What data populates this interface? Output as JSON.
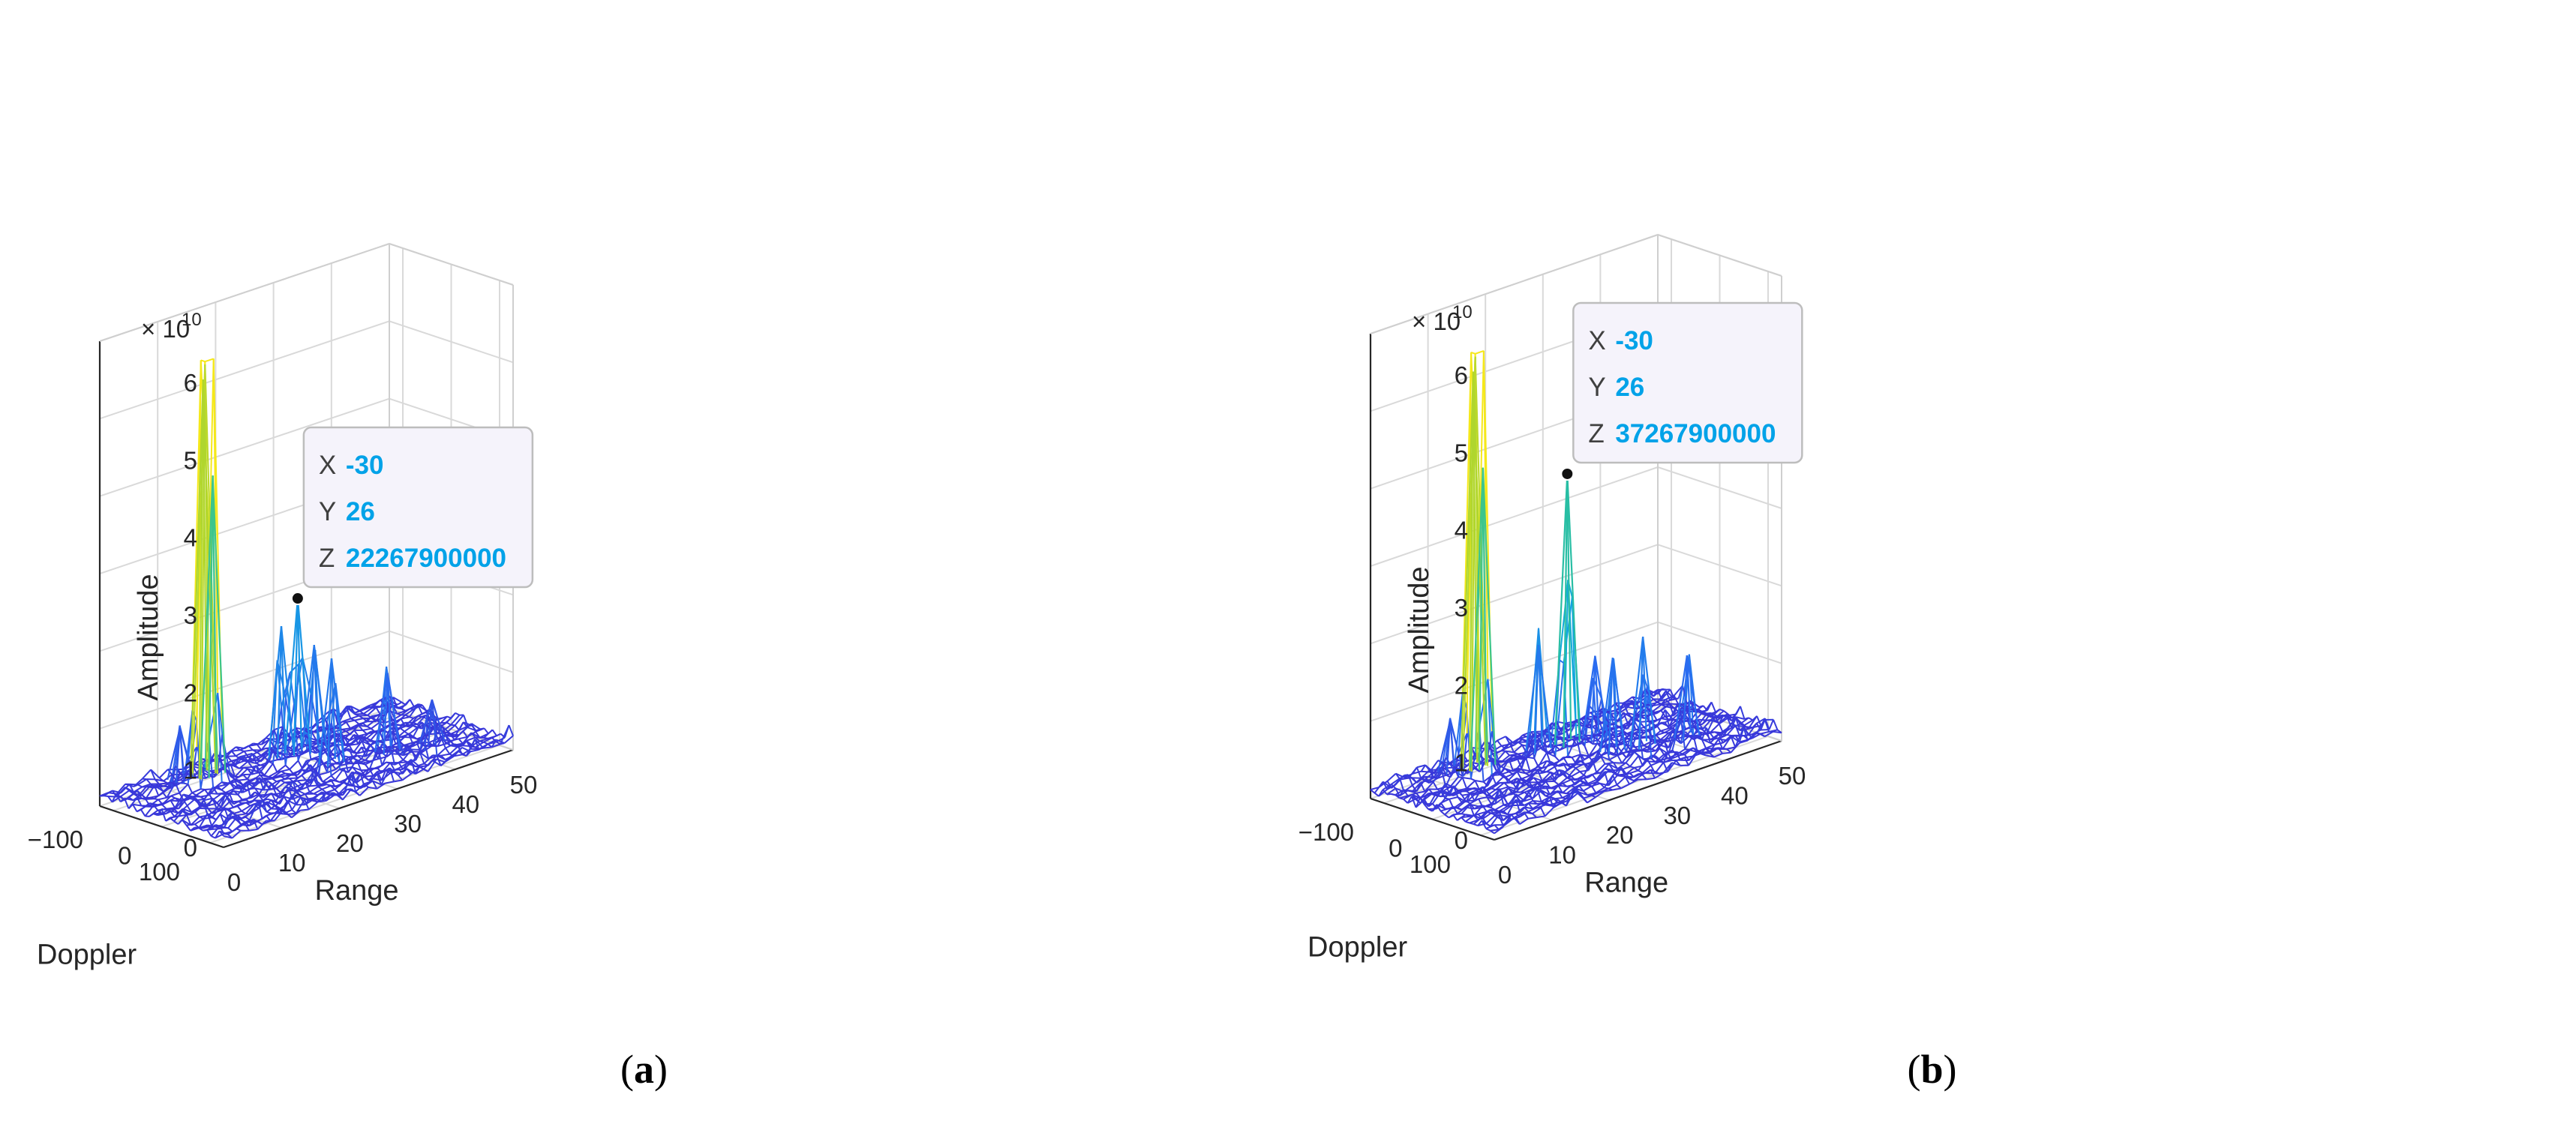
{
  "chart_data": [
    {
      "type": "surface",
      "panel_label": "b",
      "exponent_label": "× 10",
      "exponent_power": "10",
      "xlabel": "Doppler",
      "ylabel": "Range",
      "zlabel": "Amplitude",
      "x_ticks": [
        "−100",
        "0",
        "100"
      ],
      "y_ticks": [
        "0",
        "10",
        "20",
        "30",
        "40",
        "50"
      ],
      "z_ticks": [
        "0",
        "1",
        "2",
        "3",
        "4",
        "5",
        "6"
      ],
      "xlim": [
        -128,
        128
      ],
      "ylim": [
        0,
        50
      ],
      "zlim": [
        0,
        6
      ],
      "grid": true,
      "colormap": [
        "#3b2fd6",
        "#2a6cf0",
        "#10a7e0",
        "#2cc29a",
        "#a8d430",
        "#f5e81a"
      ],
      "peaks": [
        {
          "x": -54,
          "y": 12,
          "z": 5.55
        },
        {
          "x": -58,
          "y": 12,
          "z": 5.35
        },
        {
          "x": -50,
          "y": 13,
          "z": 4.1
        },
        {
          "x": -30,
          "y": 26,
          "z": 2.23
        },
        {
          "x": -40,
          "y": 24,
          "z": 1.9
        },
        {
          "x": -20,
          "y": 28,
          "z": 1.6
        },
        {
          "x": 40,
          "y": 26,
          "z": 1.6
        },
        {
          "x": 60,
          "y": 34,
          "z": 1.25
        },
        {
          "x": -70,
          "y": 9,
          "z": 0.9
        },
        {
          "x": 80,
          "y": 40,
          "z": 0.8
        }
      ],
      "datatip": {
        "x_key": "X",
        "x": "-30",
        "y_key": "Y",
        "y": "26",
        "z_key": "Z",
        "z": "22267900000"
      }
    },
    {
      "type": "surface",
      "panel_label": "b",
      "exponent_label": "× 10",
      "exponent_power": "10",
      "xlabel": "Doppler",
      "ylabel": "Range",
      "zlabel": "Amplitude",
      "x_ticks": [
        "−100",
        "0",
        "100"
      ],
      "y_ticks": [
        "0",
        "10",
        "20",
        "30",
        "40",
        "50"
      ],
      "z_ticks": [
        "0",
        "1",
        "2",
        "3",
        "4",
        "5",
        "6"
      ],
      "xlim": [
        -128,
        128
      ],
      "ylim": [
        0,
        50
      ],
      "zlim": [
        0,
        6
      ],
      "grid": true,
      "colormap": [
        "#3b2fd6",
        "#2a6cf0",
        "#10a7e0",
        "#2cc29a",
        "#a8d430",
        "#f5e81a"
      ],
      "peaks": [
        {
          "x": -54,
          "y": 12,
          "z": 5.55
        },
        {
          "x": -58,
          "y": 12,
          "z": 5.35
        },
        {
          "x": -50,
          "y": 13,
          "z": 4.1
        },
        {
          "x": -30,
          "y": 26,
          "z": 3.73
        },
        {
          "x": -42,
          "y": 22,
          "z": 1.6
        },
        {
          "x": 40,
          "y": 28,
          "z": 1.45
        },
        {
          "x": 55,
          "y": 32,
          "z": 1.65
        },
        {
          "x": 75,
          "y": 38,
          "z": 1.3
        },
        {
          "x": -70,
          "y": 9,
          "z": 0.9
        },
        {
          "x": -20,
          "y": 30,
          "z": 1.3
        }
      ],
      "datatip": {
        "x_key": "X",
        "x": "-30",
        "y_key": "Y",
        "y": "26",
        "z_key": "Z",
        "z": "37267900000"
      }
    }
  ],
  "captions": {
    "a": "a",
    "b": "b"
  }
}
